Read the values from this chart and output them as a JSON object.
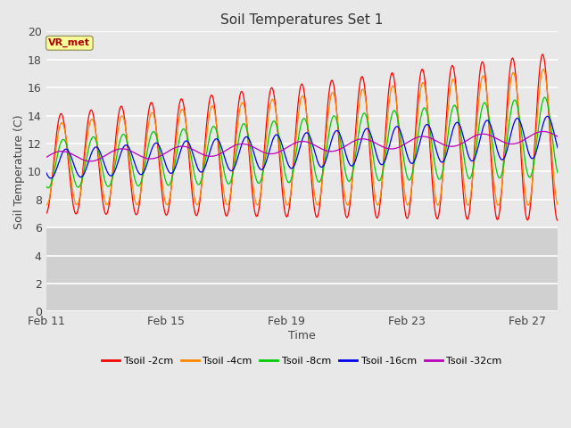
{
  "title": "Soil Temperatures Set 1",
  "xlabel": "Time",
  "ylabel": "Soil Temperature (C)",
  "ylim": [
    0,
    20
  ],
  "yticks": [
    0,
    2,
    4,
    6,
    8,
    10,
    12,
    14,
    16,
    18,
    20
  ],
  "xlim_days": [
    0,
    17
  ],
  "xtick_positions": [
    0,
    4,
    8,
    12,
    16
  ],
  "xtick_labels": [
    "Feb 11",
    "Feb 15",
    "Feb 19",
    "Feb 23",
    "Feb 27"
  ],
  "fig_bg_color": "#e8e8e8",
  "plot_bg_light": "#e8e8e8",
  "plot_bg_dark": "#d0d0d0",
  "grid_color": "#ffffff",
  "annotation_text": "VR_met",
  "annotation_color": "#aa0000",
  "annotation_bg": "#ffff99",
  "annotation_border": "#999966",
  "series": [
    {
      "label": "Tsoil -2cm",
      "color": "#ff0000"
    },
    {
      "label": "Tsoil -4cm",
      "color": "#ff8800"
    },
    {
      "label": "Tsoil -8cm",
      "color": "#00cc00"
    },
    {
      "label": "Tsoil -16cm",
      "color": "#0000ee"
    },
    {
      "label": "Tsoil -32cm",
      "color": "#bb00bb"
    }
  ],
  "n_points": 3000
}
